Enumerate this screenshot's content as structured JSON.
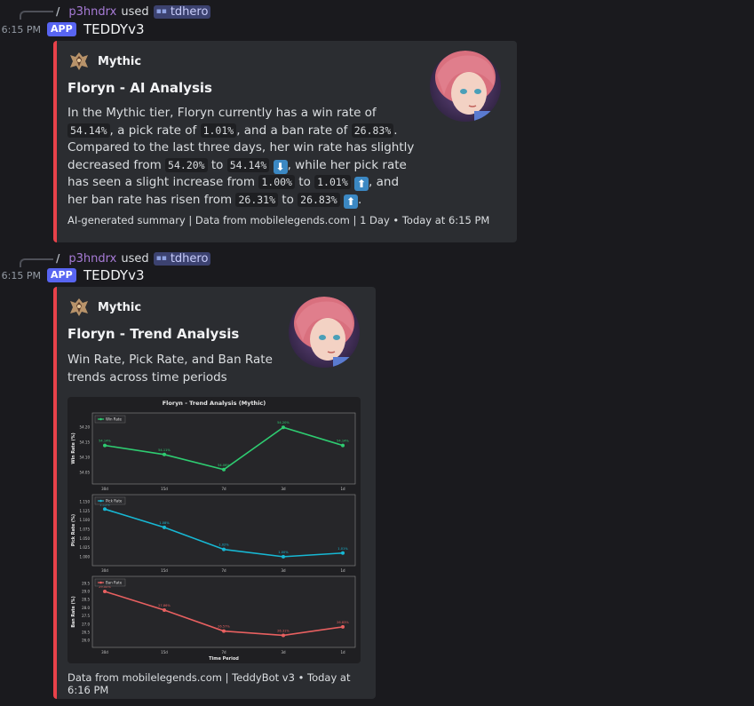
{
  "messages": [
    {
      "reply": {
        "slash": "/",
        "user": "p3hndrx",
        "used": "used",
        "command": "tdhero"
      },
      "time": "6:15 PM",
      "badge": "APP",
      "bot": "TEDDYv3",
      "embed": {
        "author": "Mythic",
        "title": "Floryn - AI Analysis",
        "desc": {
          "t1": "In the Mythic tier, Floryn currently has a win rate of ",
          "c1": "54.14%",
          "t2": ", a pick rate of ",
          "c2": "1.01%",
          "t3": ", and a ban rate of ",
          "c3": "26.83%",
          "t4": ". Compared to the last three days, her win rate has slightly decreased from ",
          "c4": "54.20%",
          "t5": " to ",
          "c5": "54.14%",
          "t6": ", while her pick rate has seen a slight increase from ",
          "c6": "1.00%",
          "t7": " to ",
          "c7": "1.01%",
          "t8": ", and her ban rate has risen from ",
          "c8": "26.31%",
          "t9": " to ",
          "c9": "26.83%",
          "t10": "."
        },
        "footer": "AI-generated summary | Data from mobilelegends.com | 1 Day • Today at 6:15 PM"
      }
    },
    {
      "reply": {
        "slash": "/",
        "user": "p3hndrx",
        "used": "used",
        "command": "tdhero"
      },
      "time": "6:15 PM",
      "badge": "APP",
      "bot": "TEDDYv3",
      "embed": {
        "author": "Mythic",
        "title": "Floryn - Trend Analysis",
        "desc_line1": "Win Rate, Pick Rate, and Ban Rate",
        "desc_line2": "trends across time periods",
        "footer": "Data from mobilelegends.com | TeddyBot v3 • Today at 6:16 PM"
      }
    }
  ],
  "chart_data": {
    "type": "line",
    "title": "Floryn - Trend Analysis (Mythic)",
    "xlabel": "Time Period",
    "categories": [
      "30d",
      "15d",
      "7d",
      "3d",
      "1d"
    ],
    "panels": [
      {
        "name": "Win Rate",
        "ylabel": "Win Rate (%)",
        "color": "#2ecc71",
        "values": [
          54.14,
          54.11,
          54.06,
          54.2,
          54.14
        ],
        "labels": [
          "54.14%",
          "54.11%",
          "54.06%",
          "54.20%",
          "54.14%"
        ],
        "yticks": [
          "54.05",
          "54.10",
          "54.15",
          "54.20"
        ],
        "ylim": [
          54.03,
          54.23
        ]
      },
      {
        "name": "Pick Rate",
        "ylabel": "Pick Rate (%)",
        "color": "#17b8d4",
        "values": [
          1.13,
          1.08,
          1.02,
          1.0,
          1.01
        ],
        "labels": [
          "1.13%",
          "1.08%",
          "1.02%",
          "1.00%",
          "1.01%"
        ],
        "yticks": [
          "1.000",
          "1.025",
          "1.050",
          "1.075",
          "1.100",
          "1.125",
          "1.150"
        ],
        "ylim": [
          0.99,
          1.155
        ]
      },
      {
        "name": "Ban Rate",
        "ylabel": "Ban Rate (%)",
        "color": "#e86060",
        "values": [
          29.0,
          27.86,
          26.57,
          26.31,
          26.83
        ],
        "labels": [
          "29.00%",
          "27.86%",
          "26.57%",
          "26.31%",
          "26.83%"
        ],
        "yticks": [
          "26.0",
          "26.5",
          "27.0",
          "27.5",
          "28.0",
          "28.5",
          "29.0",
          "29.5"
        ],
        "ylim": [
          25.9,
          29.6
        ]
      }
    ]
  }
}
